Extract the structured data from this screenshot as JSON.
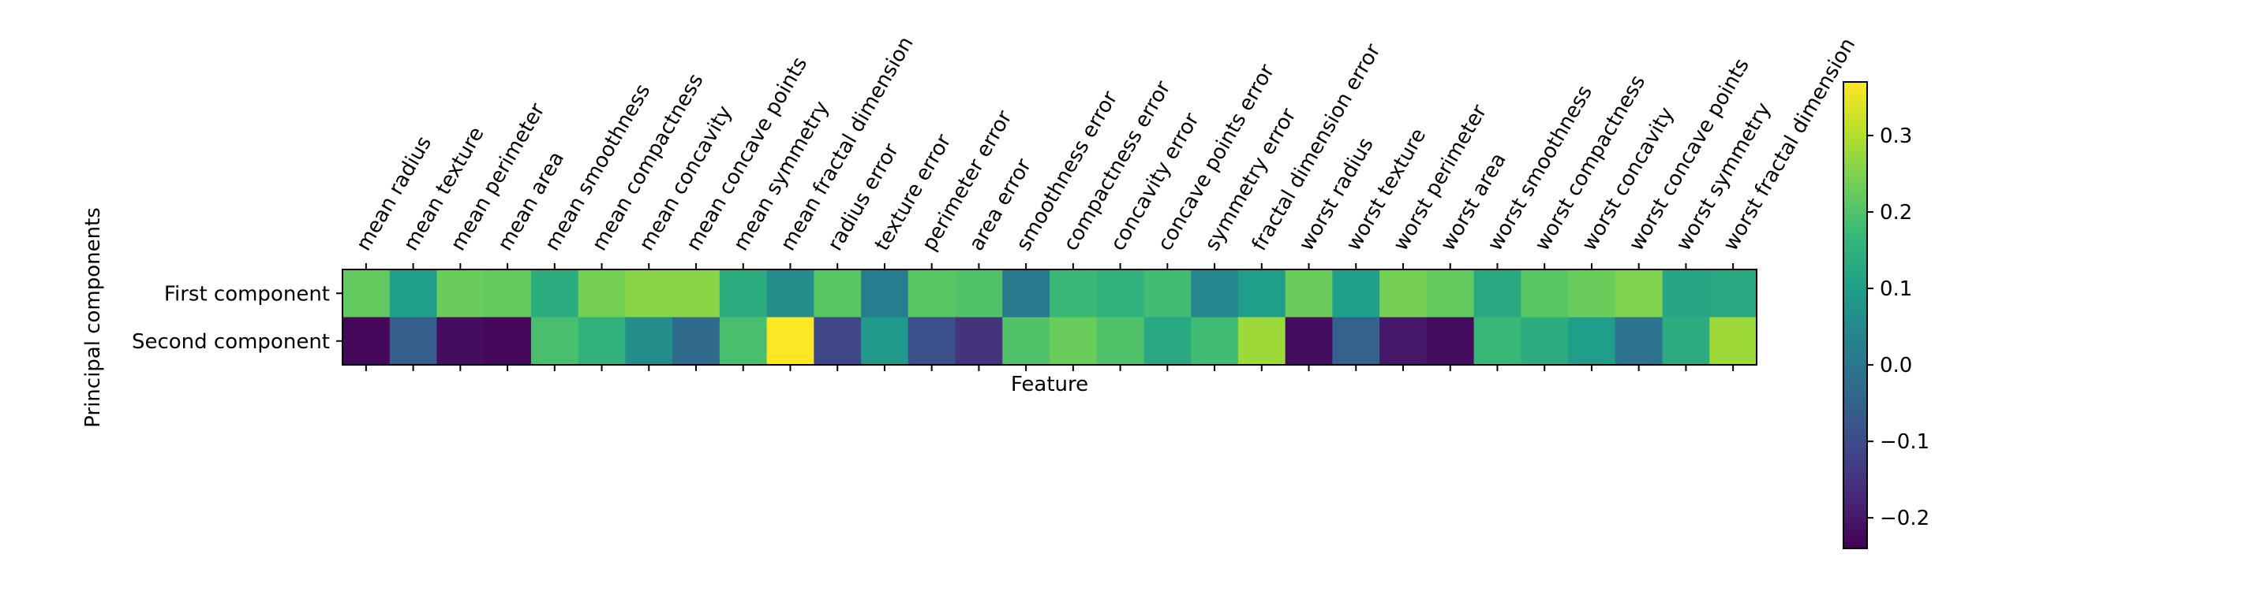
{
  "chart_data": {
    "type": "heatmap",
    "title": "",
    "xlabel": "Feature",
    "ylabel": "Principal components",
    "rows": [
      "First component",
      "Second component"
    ],
    "columns": [
      "mean radius",
      "mean texture",
      "mean perimeter",
      "mean area",
      "mean smoothness",
      "mean compactness",
      "mean concavity",
      "mean concave points",
      "mean symmetry",
      "mean fractal dimension",
      "radius error",
      "texture error",
      "perimeter error",
      "area error",
      "smoothness error",
      "compactness error",
      "concavity error",
      "concave points error",
      "symmetry error",
      "fractal dimension error",
      "worst radius",
      "worst texture",
      "worst perimeter",
      "worst area",
      "worst smoothness",
      "worst compactness",
      "worst concavity",
      "worst concave points",
      "worst symmetry",
      "worst fractal dimension"
    ],
    "values": [
      [
        0.22,
        0.1,
        0.23,
        0.22,
        0.14,
        0.24,
        0.26,
        0.26,
        0.14,
        0.06,
        0.21,
        0.02,
        0.21,
        0.2,
        0.01,
        0.17,
        0.15,
        0.18,
        0.04,
        0.1,
        0.23,
        0.1,
        0.24,
        0.22,
        0.13,
        0.21,
        0.23,
        0.25,
        0.12,
        0.13
      ],
      [
        -0.23,
        -0.06,
        -0.22,
        -0.23,
        0.19,
        0.15,
        0.06,
        -0.03,
        0.19,
        0.37,
        -0.11,
        0.09,
        -0.09,
        -0.15,
        0.2,
        0.23,
        0.2,
        0.13,
        0.18,
        0.28,
        -0.22,
        -0.05,
        -0.2,
        -0.22,
        0.17,
        0.14,
        0.1,
        -0.01,
        0.14,
        0.28
      ]
    ],
    "colormap": "viridis",
    "colorbar": {
      "range": [
        -0.24,
        0.37
      ],
      "ticks": [
        -0.2,
        -0.1,
        0.0,
        0.1,
        0.2,
        0.3
      ],
      "tick_labels": [
        "−0.2",
        "−0.1",
        "0.0",
        "0.1",
        "0.2",
        "0.3"
      ]
    },
    "grid": false,
    "legend": "colorbar-right"
  }
}
